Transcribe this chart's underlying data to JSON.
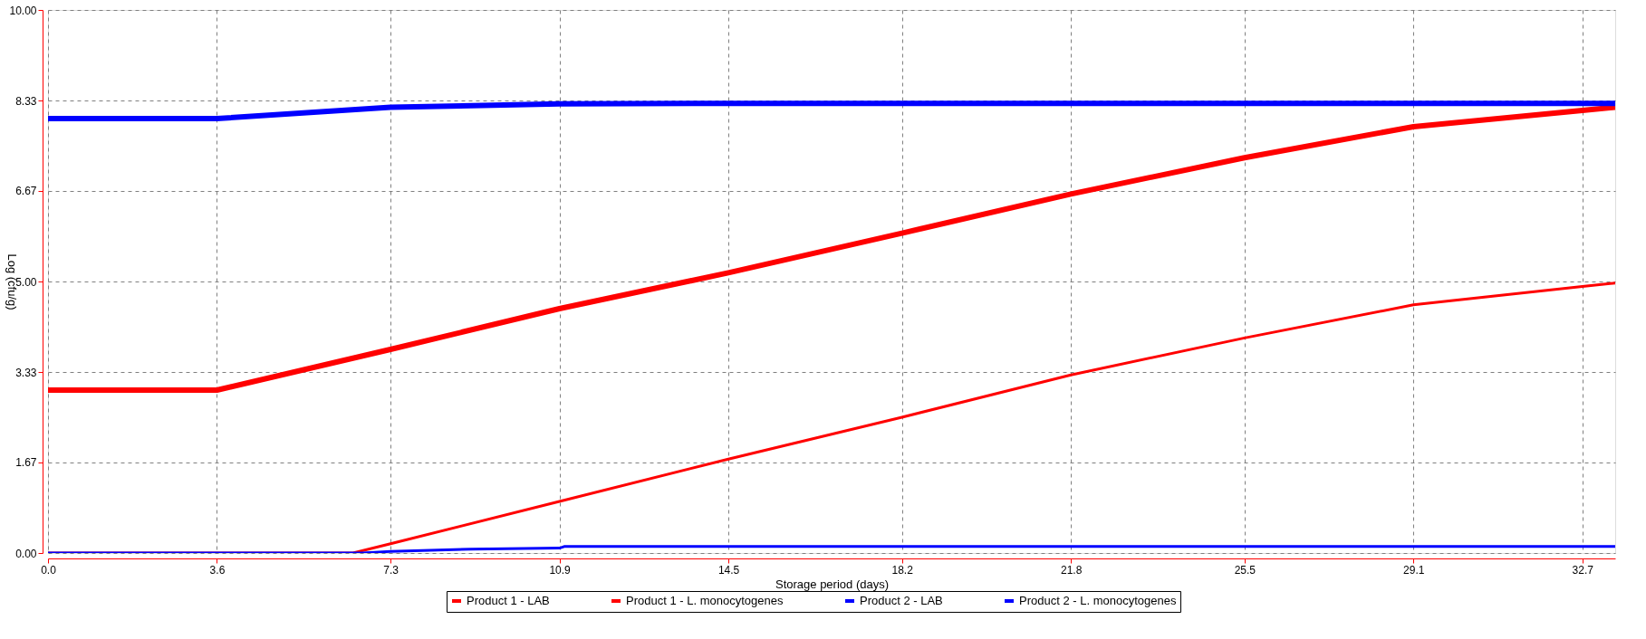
{
  "chart_data": {
    "type": "line",
    "xlabel": "Storage period (days)",
    "ylabel": "Log (cfu/g)",
    "xlim": [
      0,
      33.4
    ],
    "xticks": [
      {
        "value": 0,
        "label": "0.0"
      },
      3.6,
      7.3,
      10.9,
      14.5,
      18.2,
      21.8,
      25.5,
      29.1,
      32.7
    ],
    "ylim": [
      0,
      10
    ],
    "yticks": [
      {
        "value": 0,
        "label": "0.00"
      },
      {
        "value": 1.67,
        "label": "1.67"
      },
      {
        "value": 3.33,
        "label": "3.33"
      },
      {
        "value": 5,
        "label": "5.00"
      },
      {
        "value": 6.67,
        "label": "6.67"
      },
      {
        "value": 8.33,
        "label": "8.33"
      },
      {
        "value": 10,
        "label": "10.00"
      }
    ],
    "grid": true,
    "legend": "bottom",
    "marker": "none",
    "line_style": "solid",
    "series": [
      {
        "name": "Product 1 - LAB",
        "color": "#ff0000",
        "x": [
          0,
          3.6,
          7.3,
          10.9,
          14.5,
          18.2,
          21.8,
          25.5,
          29.1,
          32.7,
          33.4
        ],
        "values": [
          3.0,
          3.0,
          3.75,
          4.5,
          5.16,
          5.89,
          6.61,
          7.28,
          7.85,
          8.15,
          8.21
        ]
      },
      {
        "name": "Product 1 - L. monocytogenes",
        "color": "#ff0000",
        "x": [
          0,
          3.6,
          6.5,
          7.3,
          10.9,
          14.5,
          18.2,
          21.8,
          25.5,
          29.1,
          32.7,
          33.4
        ],
        "values": [
          0,
          0,
          0,
          0.17,
          0.95,
          1.73,
          2.5,
          3.28,
          3.96,
          4.57,
          4.91,
          4.97
        ]
      },
      {
        "name": "Product 2 - LAB",
        "color": "#0000ff",
        "x": [
          0,
          3.6,
          7.3,
          10.9,
          14.5,
          18.2,
          21.8,
          25.5,
          29.1,
          32.7,
          33.4
        ],
        "values": [
          8.0,
          8.0,
          8.21,
          8.27,
          8.28,
          8.28,
          8.28,
          8.28,
          8.28,
          8.28,
          8.28
        ]
      },
      {
        "name": "Product 2 - L. monocytogenes",
        "color": "#0000ff",
        "x": [
          0,
          3.6,
          6.7,
          7.3,
          9.0,
          10.9,
          11.0,
          14.5,
          18.2,
          21.8,
          25.5,
          29.1,
          32.7,
          33.4
        ],
        "values": [
          0,
          0,
          0,
          0.03,
          0.07,
          0.09,
          0.12,
          0.12,
          0.12,
          0.12,
          0.12,
          0.12,
          0.12,
          0.12
        ]
      }
    ]
  }
}
